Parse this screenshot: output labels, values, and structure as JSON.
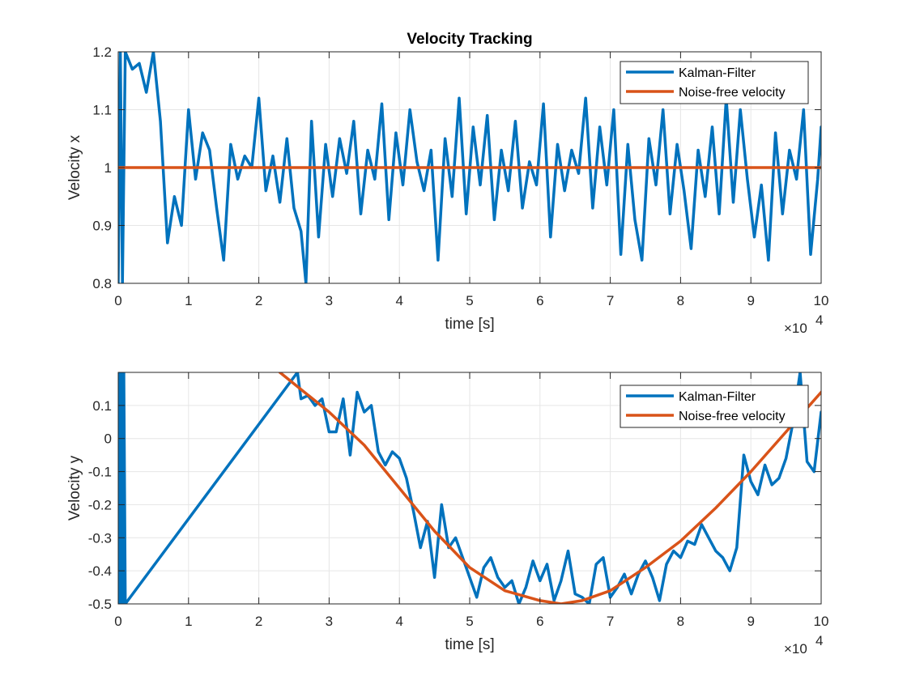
{
  "chart_data": [
    {
      "type": "line",
      "title": "Velocity Tracking",
      "xlabel": "time [s]",
      "ylabel": "Velocity x",
      "x_exponent_label": "×10",
      "x_exponent": "4",
      "xlim": [
        0,
        100000
      ],
      "ylim": [
        0.8,
        1.2
      ],
      "xticks": [
        0,
        10000,
        20000,
        30000,
        40000,
        50000,
        60000,
        70000,
        80000,
        90000,
        100000
      ],
      "xtick_labels": [
        "0",
        "1",
        "2",
        "3",
        "4",
        "5",
        "6",
        "7",
        "8",
        "9",
        "10"
      ],
      "yticks": [
        0.8,
        0.9,
        1.0,
        1.1,
        1.2
      ],
      "ytick_labels": [
        "0.8",
        "0.9",
        "1",
        "1.1",
        "1.2"
      ],
      "grid": true,
      "legend_position": "top-right",
      "series": [
        {
          "name": "Kalman-Filter",
          "color": "#0072BD",
          "x": [
            0,
            300,
            600,
            1000,
            2000,
            3000,
            4000,
            5000,
            6000,
            7000,
            8000,
            9000,
            10000,
            11000,
            12000,
            13000,
            14000,
            15000,
            16000,
            17000,
            18000,
            19000,
            20000,
            21000,
            22000,
            23000,
            24000,
            25000,
            26000,
            26700,
            27500,
            28500,
            29500,
            30500,
            31500,
            32500,
            33500,
            34500,
            35500,
            36500,
            37500,
            38500,
            39500,
            40500,
            41500,
            42500,
            43500,
            44500,
            45500,
            46500,
            47500,
            48500,
            49500,
            50500,
            51500,
            52500,
            53500,
            54500,
            55500,
            56500,
            57500,
            58500,
            59500,
            60500,
            61500,
            62500,
            63500,
            64500,
            65500,
            66500,
            67500,
            68500,
            69500,
            70500,
            71500,
            72500,
            73500,
            74500,
            75500,
            76500,
            77500,
            78500,
            79500,
            80500,
            81500,
            82500,
            83500,
            84500,
            85500,
            86500,
            87500,
            88500,
            89500,
            90500,
            91500,
            92500,
            93500,
            94500,
            95500,
            96500,
            97500,
            98500,
            99500,
            100000
          ],
          "y": [
            0.8,
            1.2,
            0.8,
            1.2,
            1.17,
            1.18,
            1.13,
            1.2,
            1.08,
            0.87,
            0.95,
            0.9,
            1.1,
            0.98,
            1.06,
            1.03,
            0.93,
            0.84,
            1.04,
            0.98,
            1.02,
            1.0,
            1.12,
            0.96,
            1.02,
            0.94,
            1.05,
            0.93,
            0.89,
            0.8,
            1.08,
            0.88,
            1.04,
            0.95,
            1.05,
            0.99,
            1.08,
            0.92,
            1.03,
            0.98,
            1.11,
            0.91,
            1.06,
            0.97,
            1.1,
            1.01,
            0.96,
            1.03,
            0.84,
            1.05,
            0.95,
            1.12,
            0.92,
            1.07,
            0.97,
            1.09,
            0.91,
            1.03,
            0.96,
            1.08,
            0.93,
            1.01,
            0.97,
            1.11,
            0.88,
            1.04,
            0.96,
            1.03,
            0.99,
            1.12,
            0.93,
            1.07,
            0.97,
            1.1,
            0.85,
            1.04,
            0.91,
            0.84,
            1.05,
            0.97,
            1.1,
            0.92,
            1.04,
            0.96,
            0.86,
            1.03,
            0.95,
            1.07,
            0.92,
            1.12,
            0.94,
            1.1,
            0.98,
            0.88,
            0.97,
            0.84,
            1.06,
            0.92,
            1.03,
            0.98,
            1.1,
            0.85,
            0.98,
            1.07
          ]
        },
        {
          "name": "Noise-free velocity",
          "color": "#D95319",
          "x": [
            0,
            100000
          ],
          "y": [
            1.0,
            1.0
          ]
        }
      ]
    },
    {
      "type": "line",
      "title": "",
      "xlabel": "time [s]",
      "ylabel": "Velocity y",
      "x_exponent_label": "×10",
      "x_exponent": "4",
      "xlim": [
        0,
        100000
      ],
      "ylim": [
        -0.5,
        0.2
      ],
      "xticks": [
        0,
        10000,
        20000,
        30000,
        40000,
        50000,
        60000,
        70000,
        80000,
        90000,
        100000
      ],
      "xtick_labels": [
        "0",
        "1",
        "2",
        "3",
        "4",
        "5",
        "6",
        "7",
        "8",
        "9",
        "10"
      ],
      "yticks": [
        -0.5,
        -0.4,
        -0.3,
        -0.2,
        -0.1,
        0,
        0.1
      ],
      "ytick_labels": [
        "-0.5",
        "-0.4",
        "-0.3",
        "-0.2",
        "-0.1",
        "0",
        "0.1"
      ],
      "grid": true,
      "legend_position": "top-right",
      "series": [
        {
          "name": "Kalman-Filter",
          "color": "#0072BD",
          "x": [
            0,
            200,
            400,
            600,
            800,
            1000,
            25500,
            26000,
            27000,
            28000,
            29000,
            30000,
            31000,
            32000,
            33000,
            34000,
            35000,
            36000,
            37000,
            38000,
            39000,
            40000,
            41000,
            42000,
            43000,
            44000,
            45000,
            46000,
            47000,
            48000,
            49000,
            50000,
            51000,
            52000,
            53000,
            54000,
            55000,
            56000,
            57000,
            58000,
            59000,
            60000,
            61000,
            62000,
            63000,
            64000,
            65000,
            66000,
            67000,
            68000,
            69000,
            70000,
            71000,
            72000,
            73000,
            74000,
            75000,
            76000,
            77000,
            78000,
            79000,
            80000,
            81000,
            82000,
            83000,
            84000,
            85000,
            86000,
            87000,
            88000,
            89000,
            90000,
            91000,
            92000,
            93000,
            94000,
            95000,
            96000,
            97000,
            98000,
            99000,
            100000
          ],
          "y": [
            0.2,
            -0.5,
            0.2,
            -0.5,
            0.2,
            -0.5,
            0.2,
            0.12,
            0.13,
            0.1,
            0.12,
            0.02,
            0.02,
            0.12,
            -0.05,
            0.14,
            0.08,
            0.1,
            -0.04,
            -0.08,
            -0.04,
            -0.06,
            -0.12,
            -0.22,
            -0.33,
            -0.25,
            -0.42,
            -0.2,
            -0.33,
            -0.3,
            -0.36,
            -0.42,
            -0.48,
            -0.39,
            -0.36,
            -0.42,
            -0.45,
            -0.43,
            -0.5,
            -0.45,
            -0.37,
            -0.43,
            -0.38,
            -0.49,
            -0.43,
            -0.34,
            -0.47,
            -0.48,
            -0.5,
            -0.38,
            -0.36,
            -0.48,
            -0.45,
            -0.41,
            -0.47,
            -0.41,
            -0.37,
            -0.42,
            -0.49,
            -0.38,
            -0.34,
            -0.36,
            -0.31,
            -0.32,
            -0.26,
            -0.3,
            -0.34,
            -0.36,
            -0.4,
            -0.33,
            -0.05,
            -0.13,
            -0.17,
            -0.08,
            -0.14,
            -0.12,
            -0.06,
            0.05,
            0.2,
            -0.07,
            -0.1,
            0.08
          ]
        },
        {
          "name": "Noise-free velocity",
          "color": "#D95319",
          "x": [
            23000,
            30000,
            35000,
            40000,
            45000,
            50000,
            55000,
            60000,
            63000,
            66000,
            70000,
            75000,
            80000,
            85000,
            90000,
            95000,
            100000
          ],
          "y": [
            0.2,
            0.08,
            -0.02,
            -0.15,
            -0.28,
            -0.39,
            -0.46,
            -0.49,
            -0.5,
            -0.49,
            -0.46,
            -0.39,
            -0.31,
            -0.21,
            -0.1,
            0.02,
            0.14
          ]
        }
      ]
    }
  ]
}
